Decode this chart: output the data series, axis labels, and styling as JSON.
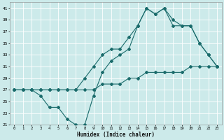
{
  "xlabel": "Humidex (Indice chaleur)",
  "bg_color": "#cceaea",
  "grid_color": "#ffffff",
  "line_color": "#1a6b6b",
  "xlim": [
    -0.5,
    23.5
  ],
  "ylim": [
    21,
    42
  ],
  "xticks": [
    0,
    1,
    2,
    3,
    4,
    5,
    6,
    7,
    8,
    9,
    10,
    11,
    12,
    13,
    14,
    15,
    16,
    17,
    18,
    19,
    20,
    21,
    22,
    23
  ],
  "yticks": [
    21,
    23,
    25,
    27,
    29,
    31,
    33,
    35,
    37,
    39,
    41
  ],
  "line1_x": [
    0,
    1,
    2,
    3,
    4,
    5,
    6,
    7,
    8,
    9,
    10,
    11,
    12,
    13,
    14,
    15,
    16,
    17,
    18,
    19,
    20,
    21,
    22,
    23
  ],
  "line1_y": [
    27,
    27,
    27,
    27,
    27,
    27,
    27,
    27,
    27,
    27,
    28,
    28,
    28,
    29,
    29,
    30,
    30,
    30,
    30,
    30,
    31,
    31,
    31,
    31
  ],
  "line2_x": [
    0,
    1,
    2,
    3,
    4,
    5,
    6,
    7,
    8,
    9,
    10,
    11,
    12,
    13,
    14,
    15,
    16,
    17,
    18,
    19,
    20,
    21,
    22,
    23
  ],
  "line2_y": [
    27,
    27,
    27,
    27,
    27,
    27,
    27,
    27,
    29,
    31,
    33,
    34,
    34,
    36,
    38,
    41,
    40,
    41,
    39,
    38,
    38,
    35,
    33,
    31
  ],
  "line3_x": [
    0,
    1,
    2,
    3,
    4,
    5,
    6,
    7,
    8,
    9,
    10,
    11,
    12,
    13,
    14,
    15,
    16,
    17,
    18,
    19,
    20,
    21,
    22,
    23
  ],
  "line3_y": [
    27,
    27,
    27,
    26,
    24,
    24,
    22,
    21,
    21,
    26,
    30,
    32,
    33,
    34,
    38,
    41,
    40,
    41,
    38,
    38,
    38,
    35,
    33,
    31
  ]
}
